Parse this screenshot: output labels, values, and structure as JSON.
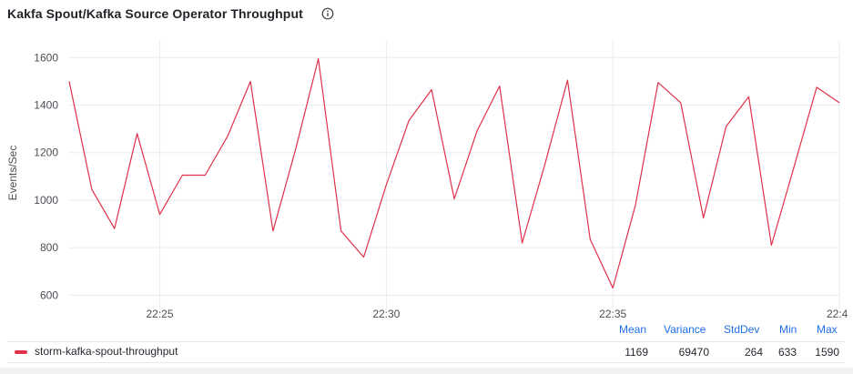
{
  "panel": {
    "title": "Kakfa Spout/Kafka Source Operator Throughput",
    "info_icon": "info-circle-icon"
  },
  "chart_data": {
    "type": "line",
    "title": "Kakfa Spout/Kafka Source Operator Throughput",
    "ylabel": "Events/Sec",
    "xlabel": "",
    "ylim": [
      540,
      1670
    ],
    "xlim": [
      "22:23",
      "22:40"
    ],
    "grid": true,
    "y_ticks": [
      600,
      800,
      1000,
      1200,
      1400,
      1600
    ],
    "x_ticks": [
      "22:25",
      "22:30",
      "22:35",
      "22:4"
    ],
    "x_tick_minutes": [
      2,
      7,
      12,
      17
    ],
    "series": [
      {
        "name": "storm-kafka-spout-throughput",
        "color": "#e0304a",
        "x_minutes": [
          0,
          0.5,
          1,
          1.5,
          2,
          2.5,
          3,
          3.5,
          4,
          4.5,
          5,
          5.5,
          6,
          6.5,
          7,
          7.5,
          8,
          8.5,
          9,
          9.5,
          10,
          10.5,
          11,
          11.5,
          12,
          12.5,
          13,
          13.5,
          14,
          14.5,
          15,
          15.5,
          16,
          16.5,
          17
        ],
        "values": [
          1500,
          1045,
          880,
          1280,
          940,
          1105,
          1105,
          1270,
          1500,
          870,
          1215,
          1595,
          870,
          760,
          1065,
          1335,
          1465,
          1005,
          1290,
          1480,
          820,
          1150,
          1505,
          835,
          630,
          980,
          1495,
          1410,
          925,
          1310,
          1435,
          810,
          1140,
          1475,
          1410
        ]
      }
    ]
  },
  "legend": {
    "headers": {
      "mean": "Mean",
      "variance": "Variance",
      "stddev": "StdDev",
      "min": "Min",
      "max": "Max"
    },
    "rows": [
      {
        "name": "storm-kafka-spout-throughput",
        "color": "#e0304a",
        "mean": "1169",
        "variance": "69470",
        "stddev": "264",
        "min": "633",
        "max": "1590"
      }
    ]
  }
}
